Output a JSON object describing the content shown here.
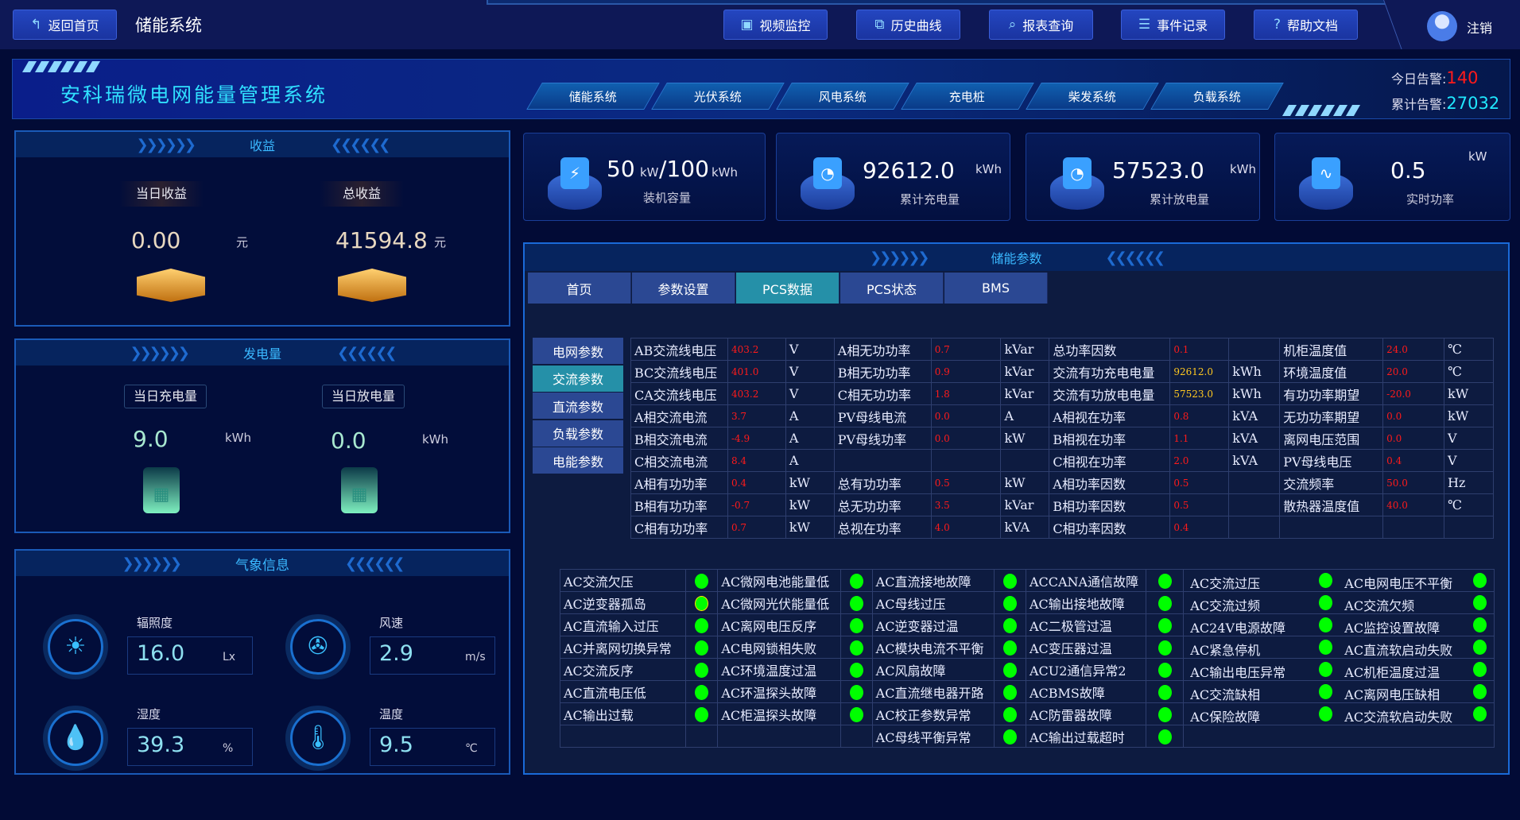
{
  "topbar": {
    "back_label": "返回首页",
    "page_title": "储能系统",
    "logout": "注销",
    "nav": [
      {
        "label": "视频监控",
        "icon": "video-icon"
      },
      {
        "label": "历史曲线",
        "icon": "chart-icon"
      },
      {
        "label": "报表查询",
        "icon": "search-report-icon"
      },
      {
        "label": "事件记录",
        "icon": "document-icon"
      },
      {
        "label": "帮助文档",
        "icon": "help-icon"
      }
    ]
  },
  "banner": {
    "title": "安科瑞微电网能量管理系统",
    "tabs": [
      "储能系统",
      "光伏系统",
      "风电系统",
      "充电桩",
      "柴发系统",
      "负载系统"
    ],
    "today_alarm_label": "今日告警:",
    "today_alarm": "140",
    "total_alarm_label": "累计告警:",
    "total_alarm": "27032"
  },
  "income": {
    "title": "收益",
    "today_label": "当日收益",
    "today_value": "0.00",
    "total_label": "总收益",
    "total_value": "41594.8",
    "unit": "元"
  },
  "energy": {
    "title": "发电量",
    "charge_label": "当日充电量",
    "charge_value": "9.0",
    "discharge_label": "当日放电量",
    "discharge_value": "0.0",
    "unit": "kWh"
  },
  "weather": {
    "title": "气象信息",
    "items": [
      {
        "label": "辐照度",
        "value": "16.0",
        "unit": "Lx",
        "icon": "sun-icon"
      },
      {
        "label": "风速",
        "value": "2.9",
        "unit": "m/s",
        "icon": "fan-icon"
      },
      {
        "label": "湿度",
        "value": "39.3",
        "unit": "%",
        "icon": "water-drop-icon"
      },
      {
        "label": "温度",
        "value": "9.5",
        "unit": "℃",
        "icon": "thermometer-icon"
      }
    ]
  },
  "cards": [
    {
      "value": "50",
      "unit1": "kW",
      "sep": "/100",
      "unit2": "kWh",
      "caption": "装机容量",
      "icon": "battery-icon"
    },
    {
      "value": "92612.0",
      "unit": "kWh",
      "caption": "累计充电量",
      "icon": "meter-icon"
    },
    {
      "value": "57523.0",
      "unit": "kWh",
      "caption": "累计放电量",
      "icon": "meter-icon"
    },
    {
      "value": "0.5",
      "unit": "kW",
      "caption": "实时功率",
      "icon": "pulse-icon"
    }
  ],
  "main": {
    "title": "储能参数",
    "tabs": [
      "首页",
      "参数设置",
      "PCS数据",
      "PCS状态",
      "BMS"
    ],
    "active_tab": 2,
    "side_tabs": [
      "电网参数",
      "交流参数",
      "直流参数",
      "负载参数",
      "电能参数"
    ],
    "active_side": 1,
    "rows": [
      [
        [
          "AB交流线电压",
          "403.2",
          "V"
        ],
        [
          "A相无功功率",
          "0.7",
          "kVar"
        ],
        [
          "总功率因数",
          "0.1",
          ""
        ],
        [
          "机柜温度值",
          "24.0",
          "℃"
        ]
      ],
      [
        [
          "BC交流线电压",
          "401.0",
          "V"
        ],
        [
          "B相无功功率",
          "0.9",
          "kVar"
        ],
        [
          "交流有功充电电量",
          "92612.0",
          "kWh"
        ],
        [
          "环境温度值",
          "20.0",
          "℃"
        ]
      ],
      [
        [
          "CA交流线电压",
          "403.2",
          "V"
        ],
        [
          "C相无功功率",
          "1.8",
          "kVar"
        ],
        [
          "交流有功放电电量",
          "57523.0",
          "kWh"
        ],
        [
          "有功功率期望",
          "-20.0",
          "kW"
        ]
      ],
      [
        [
          "A相交流电流",
          "3.7",
          "A"
        ],
        [
          "PV母线电流",
          "0.0",
          "A"
        ],
        [
          "A相视在功率",
          "0.8",
          "kVA"
        ],
        [
          "无功功率期望",
          "0.0",
          "kW"
        ]
      ],
      [
        [
          "B相交流电流",
          "-4.9",
          "A"
        ],
        [
          "PV母线功率",
          "0.0",
          "kW"
        ],
        [
          "B相视在功率",
          "1.1",
          "kVA"
        ],
        [
          "离网电压范围",
          "0.0",
          "V"
        ]
      ],
      [
        [
          "C相交流电流",
          "8.4",
          "A"
        ],
        [
          "",
          "",
          ""
        ],
        [
          "C相视在功率",
          "2.0",
          "kVA"
        ],
        [
          "PV母线电压",
          "0.4",
          "V"
        ]
      ],
      [
        [
          "A相有功功率",
          "0.4",
          "kW"
        ],
        [
          "总有功功率",
          "0.5",
          "kW"
        ],
        [
          "A相功率因数",
          "0.5",
          ""
        ],
        [
          "交流频率",
          "50.0",
          "Hz"
        ]
      ],
      [
        [
          "B相有功功率",
          "-0.7",
          "kW"
        ],
        [
          "总无功功率",
          "3.5",
          "kVar"
        ],
        [
          "B相功率因数",
          "0.5",
          ""
        ],
        [
          "散热器温度值",
          "40.0",
          "℃"
        ]
      ],
      [
        [
          "C相有功功率",
          "0.7",
          "kW"
        ],
        [
          "总视在功率",
          "4.0",
          "kVA"
        ],
        [
          "C相功率因数",
          "0.4",
          ""
        ],
        [
          "",
          "",
          ""
        ]
      ]
    ],
    "faults": [
      [
        "AC交流欠压",
        "AC微网电池能量低",
        "AC直流接地故障",
        "ACCANA通信故障",
        "AC交流过压",
        "AC电网电压不平衡"
      ],
      [
        "AC逆变器孤岛",
        "AC微网光伏能量低",
        "AC母线过压",
        "AC输出接地故障",
        "AC交流过频",
        "AC交流欠频"
      ],
      [
        "AC直流输入过压",
        "AC离网电压反序",
        "AC逆变器过温",
        "AC二极管过温",
        "AC24V电源故障",
        "AC监控设置故障"
      ],
      [
        "AC并离网切换异常",
        "AC电网锁相失败",
        "AC模块电流不平衡",
        "AC变压器过温",
        "AC紧急停机",
        "AC直流软启动失败"
      ],
      [
        "AC交流反序",
        "AC环境温度过温",
        "AC风扇故障",
        "ACU2通信异常2",
        "AC输出电压异常",
        "AC机柜温度过温"
      ],
      [
        "AC直流电压低",
        "AC环温探头故障",
        "AC直流继电器开路",
        "ACBMS故障",
        "AC交流缺相",
        "AC离网电压缺相"
      ],
      [
        "AC输出过载",
        "AC柜温探头故障",
        "AC校正参数异常",
        "AC防雷器故障",
        "AC保险故障",
        "AC交流软启动失败"
      ],
      [
        "",
        "",
        "AC母线平衡异常",
        "AC输出过载超时",
        "",
        ""
      ]
    ],
    "status_colors": {
      "normal": "#00ff00",
      "ring": "#ffe000"
    },
    "highlighted_fault": "AC逆变器孤岛"
  }
}
